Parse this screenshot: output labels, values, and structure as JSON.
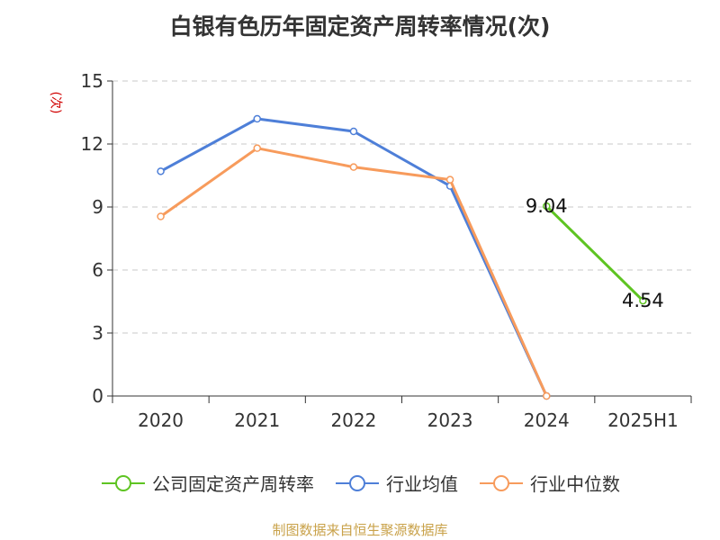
{
  "title": "白银有色历年固定资产周转率情况(次)",
  "y_unit": "(次)",
  "source": "制图数据来自恒生聚源数据库",
  "colors": {
    "company": "#5ec422",
    "industry_avg": "#4e7fd8",
    "industry_median": "#f79b5c",
    "grid": "#c8c8c8",
    "axis": "#333333"
  },
  "chart_data": {
    "type": "line",
    "title": "白银有色历年固定资产周转率情况(次)",
    "xlabel": "",
    "ylabel": "(次)",
    "categories": [
      "2020",
      "2021",
      "2022",
      "2023",
      "2024",
      "2025H1"
    ],
    "ylim": [
      0,
      15
    ],
    "yticks": [
      0,
      3,
      6,
      9,
      12,
      15
    ],
    "grid": true,
    "legend_position": "bottom",
    "series": [
      {
        "name": "公司固定资产周转率",
        "color_key": "company",
        "values": [
          null,
          null,
          null,
          null,
          9.04,
          4.54
        ],
        "labels": [
          null,
          null,
          null,
          null,
          "9.04",
          "4.54"
        ]
      },
      {
        "name": "行业均值",
        "color_key": "industry_avg",
        "values": [
          10.7,
          13.2,
          12.6,
          10.0,
          0.0,
          null
        ]
      },
      {
        "name": "行业中位数",
        "color_key": "industry_median",
        "values": [
          8.55,
          11.8,
          10.9,
          10.3,
          0.0,
          null
        ]
      }
    ]
  }
}
